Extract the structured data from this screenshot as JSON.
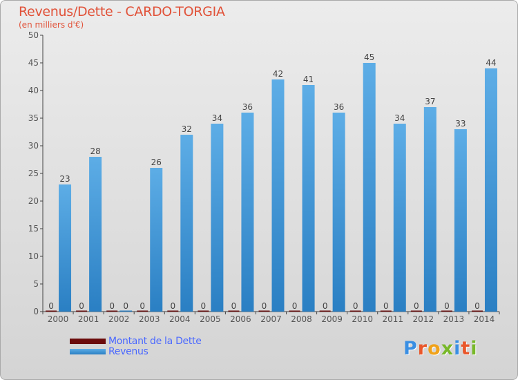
{
  "title": "Revenus/Dette - CARDO-TORGIA",
  "subtitle": "(en milliers d'€)",
  "brand": "Proxiti",
  "brand_colors": [
    "#3a8fe3",
    "#e9572b",
    "#f0a21a",
    "#78b82a",
    "#3a8fe3",
    "#e9572b",
    "#78b82a"
  ],
  "colors": {
    "title": "#e1533a",
    "legend_text": "#4a68ff",
    "revenus_top": "#5dade6",
    "revenus_bottom": "#2a7fc3",
    "dette": "#6b0b0b",
    "axis": "#444444"
  },
  "legend": {
    "dette_label": "Montant de la Dette",
    "revenus_label": "Revenus"
  },
  "chart_data": {
    "type": "bar",
    "title": "Revenus/Dette - CARDO-TORGIA",
    "ylabel": "(en milliers d'€)",
    "xlabel": "",
    "ylim": [
      0,
      50
    ],
    "yticks": [
      0,
      5,
      10,
      15,
      20,
      25,
      30,
      35,
      40,
      45,
      50
    ],
    "grid": false,
    "legend_position": "bottom-left",
    "categories": [
      "2000",
      "2001",
      "2002",
      "2003",
      "2004",
      "2005",
      "2006",
      "2007",
      "2008",
      "2009",
      "2010",
      "2011",
      "2012",
      "2013",
      "2014"
    ],
    "series": [
      {
        "name": "Montant de la Dette",
        "values": [
          0,
          0,
          0,
          0,
          0,
          0,
          0,
          0,
          0,
          0,
          0,
          0,
          0,
          0,
          0
        ],
        "labels": [
          "0",
          "0",
          "0",
          "0",
          "0",
          "0",
          "0",
          "0",
          "0",
          "0",
          "0",
          "0",
          "0",
          "0",
          "0"
        ]
      },
      {
        "name": "Revenus",
        "values": [
          23,
          28,
          0,
          26,
          32,
          34,
          36,
          42,
          41,
          36,
          45,
          34,
          37,
          33,
          44
        ],
        "labels": [
          "23",
          "28",
          "0",
          "26",
          "32",
          "34",
          "36",
          "42",
          "41",
          "36",
          "45",
          "34",
          "37",
          "33",
          "44"
        ]
      }
    ]
  }
}
